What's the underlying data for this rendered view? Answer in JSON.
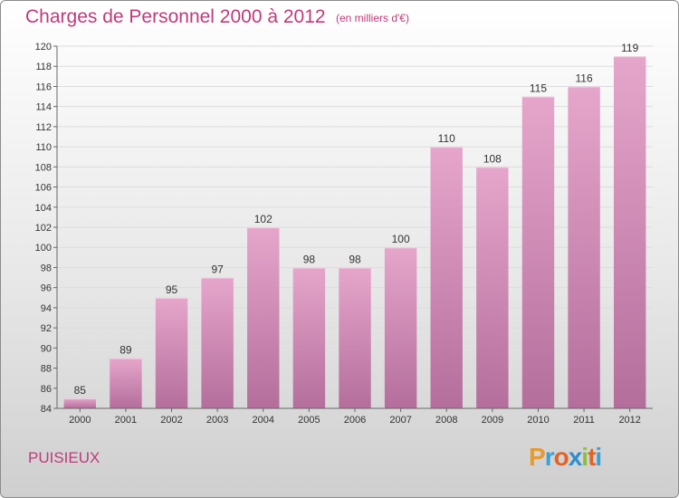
{
  "chart_data": {
    "type": "bar",
    "title": "Charges de Personnel 2000 à 2012",
    "subtitle": "(en milliers d'€)",
    "categories": [
      "2000",
      "2001",
      "2002",
      "2003",
      "2004",
      "2005",
      "2006",
      "2007",
      "2008",
      "2009",
      "2010",
      "2011",
      "2012"
    ],
    "values": [
      85,
      89,
      95,
      97,
      102,
      98,
      98,
      100,
      110,
      108,
      115,
      116,
      119
    ],
    "ylim": [
      84,
      120
    ],
    "ytick_step": 2,
    "xlabel": "",
    "ylabel": "",
    "grid": true
  },
  "location": "PUISIEUX",
  "brand": {
    "letters": [
      "P",
      "r",
      "o",
      "x",
      "i",
      "t",
      "i"
    ],
    "colors": [
      "#e89a2c",
      "#3aa0d8",
      "#e0642a",
      "#2d8fd0",
      "#8cbf3a",
      "#e0642a",
      "#3aa0d8"
    ]
  },
  "colors": {
    "accent": "#c03a7a",
    "bar_top": "#e6a6cb",
    "bar_bottom": "#b46e9c",
    "axis": "#666666",
    "grid": "#dddddd"
  }
}
